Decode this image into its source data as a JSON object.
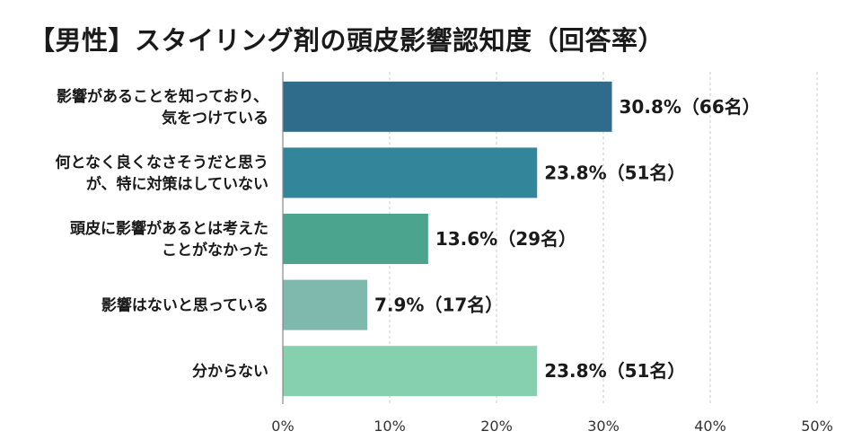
{
  "chart_data": {
    "type": "bar",
    "orientation": "horizontal",
    "title": "【男性】スタイリング剤の頭皮影響認知度（回答率）",
    "categories": [
      [
        "影響があることを知っており、",
        "気をつけている"
      ],
      [
        "何となく良くなさそうだと思う",
        "が、特に対策はしていない"
      ],
      [
        "頭皮に影響があるとは考えた",
        "ことがなかった"
      ],
      [
        "影響はないと思っている"
      ],
      [
        "分からない"
      ]
    ],
    "values": [
      30.8,
      23.8,
      13.6,
      7.9,
      23.8
    ],
    "value_labels": [
      "30.8%（66名）",
      "23.8%（51名）",
      "13.6%（29名）",
      "7.9%（17名）",
      "23.8%（51名）"
    ],
    "bar_colors": [
      "#2f6b8a",
      "#33869a",
      "#4aa48e",
      "#7fb9ad",
      "#86d0b0"
    ],
    "xlim": [
      0,
      50
    ],
    "xticks": [
      0,
      10,
      20,
      30,
      40,
      50
    ],
    "xtick_labels": [
      "0%",
      "10%",
      "20%",
      "30%",
      "40%",
      "50%"
    ],
    "grid": "vertical dashed",
    "xlabel": "",
    "ylabel": ""
  }
}
